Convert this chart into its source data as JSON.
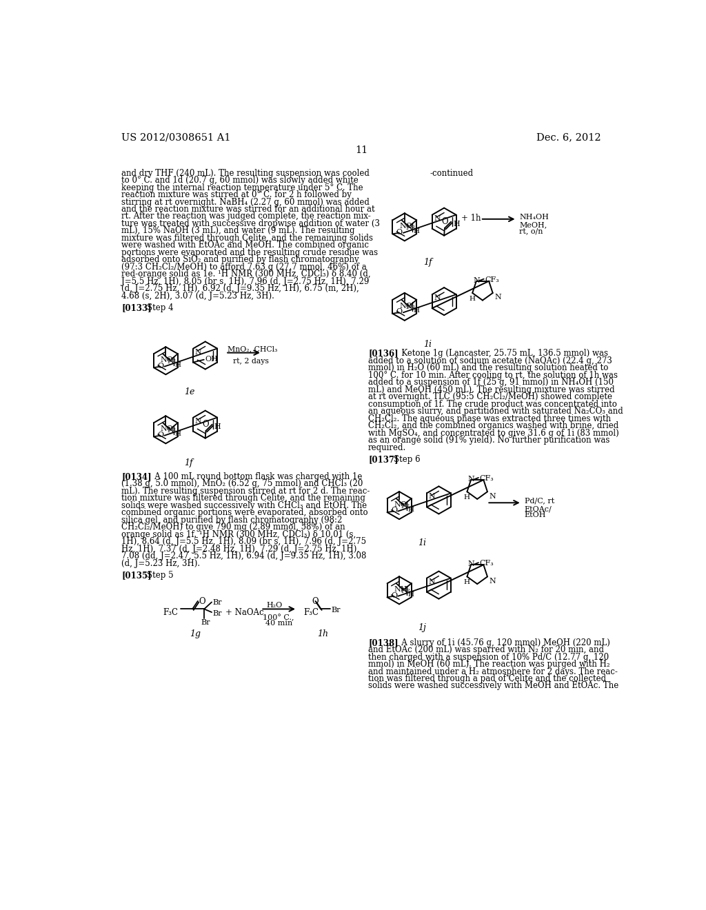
{
  "page_header_left": "US 2012/0308651 A1",
  "page_header_right": "Dec. 6, 2012",
  "page_number": "11",
  "bg": "#ffffff",
  "left_col_lines": [
    "and dry THF (240 mL). The resulting suspension was cooled",
    "to 0° C. and 1d (20.7 g, 60 mmol) was slowly added white",
    "keeping the internal reaction temperature under 5° C. The",
    "reaction mixture was stirred at 0° C. for 2 h followed by",
    "stirring at rt overnight. NaBH₄ (2.27 g, 60 mmol) was added",
    "and the reaction mixture was stirred for an additional hour at",
    "rt. After the reaction was judged complete, the reaction mix-",
    "ture was treated with successive dropwise addition of water (3",
    "mL), 15% NaOH (3 mL), and water (9 mL). The resulting",
    "mixture was filtered through Celite, and the remaining solids",
    "were washed with EtOAc and MeOH. The combined organic",
    "portions were evaporated and the resulting crude residue was",
    "adsorbed onto SiO₂ and purified by flash chromatography",
    "(97:3 CH₂Cl₂/MeOH) to afford 7.63 g (27.7 mmol, 46%) of a",
    "red-orange solid as 1e. ¹H NMR (300 MHz, CDCl₃) δ 8.40 (d,",
    "J=5.5 Hz, 1H), 8.05 (br s, 1H), 7.96 (d, J=2.75 Hz, 1H), 7.29",
    "(d, J=2.75 Hz, 1H), 6.92 (d, J=9.35 Hz, 1H), 6.75 (m, 2H),",
    "4.68 (s, 2H), 3.07 (d, J=5.23 Hz, 3H)."
  ],
  "p134_lines": [
    "[0134]   A 100 mL round bottom flask was charged with 1e",
    "(1.38 g, 5.0 mmol), MnO₂ (6.52 g, 75 mmol) and CHCl₃ (20",
    "mL). The resulting suspension stirred at rt for 2 d. The reac-",
    "tion mixture was filtered through Celite, and the remaining",
    "solids were washed successively with CHCl₃ and EtOH. The",
    "combined organic portions were evaporated, absorbed onto",
    "silica gel, and purified by flash chromatography (98:2",
    "CH₂Cl₂/MeOH) to give 790 mg (2.89 mmol, 58%) of an",
    "orange solid as 1f. ¹H NMR (300 MHz, CDCl₃) δ 10.01 (s,",
    "1H), 8.64 (d, J=5.5 Hz, 1H), 8.09 (br s, 1H), 7.96 (d, J=2.75",
    "Hz, 1H), 7.37 (d, J=2.48 Hz, 1H), 7.29 (d, J=2.75 Hz, 1H),",
    "7.08 (dd, J=2.47, 5.5 Hz, 1H), 6.94 (d, J=9.35 Hz, 1H), 3.08",
    "(d, J=5.23 Hz, 3H)."
  ],
  "p136_lines": [
    "[0136]   Ketone 1g (Lancaster, 25.75 mL, 136.5 mmol) was",
    "added to a solution of sodium acetate (NaOAc) (22.4 g, 273",
    "mmol) in H₂O (60 mL) and the resulting solution heated to",
    "100° C. for 10 min. After cooling to rt, the solution of 1h was",
    "added to a suspension of 1f (25 g, 91 mmol) in NH₄OH (150",
    "mL) and MeOH (450 mL). The resulting mixture was stirred",
    "at rt overnight. TLC (95:5 CH₂Cl₂/MeOH) showed complete",
    "consumption of 1f. The crude product was concentrated into",
    "an aqueous slurry, and partitioned with saturated Na₂CO₃ and",
    "CH₂Cl₂. The aqueous phase was extracted three times with",
    "CH₂Cl₂, and the combined organics washed with brine, dried",
    "with MgSO₄, and concentrated to give 31.6 g of 1i (83 mmol)",
    "as an orange solid (91% yield). No further purification was",
    "required."
  ],
  "p138_lines": [
    "[0138]   A slurry of 1i (45.76 g, 120 mmol) MeOH (220 mL)",
    "and EtOAc (200 mL) was sparred with N₂ for 20 min, and",
    "then charged with a suspension of 10% Pd/C (12.77 g, 120",
    "mmol) in MeOH (60 mL). The reaction was purged with H₂",
    "and maintained under a H₂ atmosphere for 2 days. The reac-",
    "tion was filtered through a pad of Celite and the collected",
    "solids were washed successively with MeOH and EtOAc. The"
  ]
}
